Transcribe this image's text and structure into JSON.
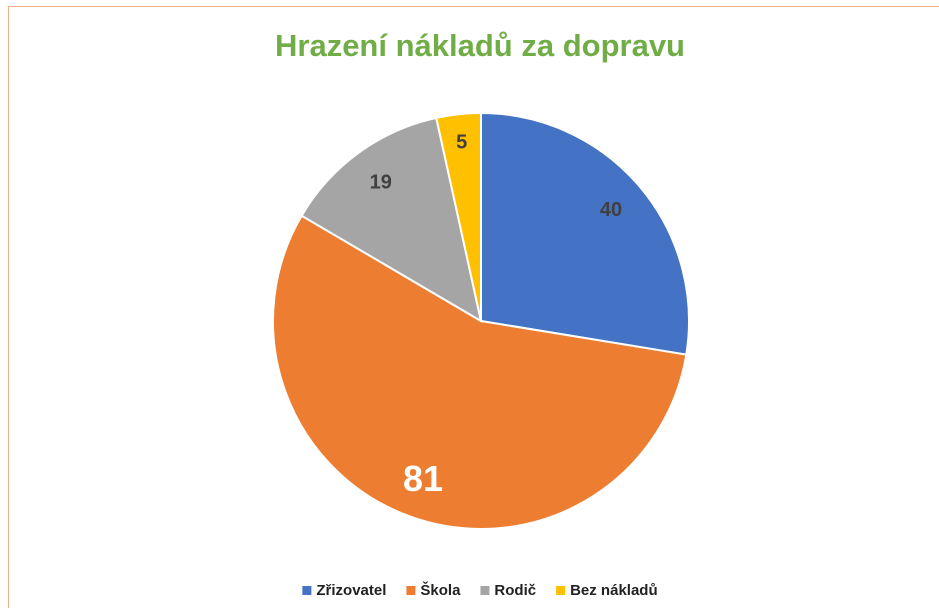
{
  "chart_data": {
    "type": "pie",
    "title": "Hrazení nákladů za dopravu",
    "categories": [
      "Zřizovatel",
      "Škola",
      "Rodič",
      "Bez nákladů"
    ],
    "values": [
      40,
      81,
      19,
      5
    ],
    "colors": [
      "#4472c4",
      "#ed7d31",
      "#a5a5a5",
      "#ffc000"
    ],
    "legend": "bottom"
  }
}
